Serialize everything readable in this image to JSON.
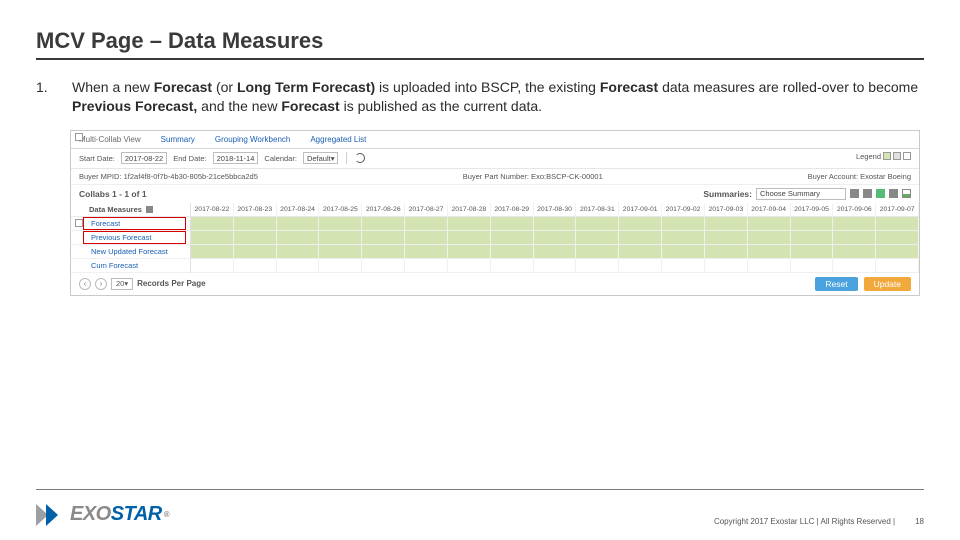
{
  "title": "MCV Page – Data Measures",
  "bullet_num": "1.",
  "body_html_parts": {
    "p1": "When a new ",
    "b1": "Forecast",
    "p2": " (or ",
    "b2": "Long Term Forecast)",
    "p3": " is uploaded into BSCP, the existing ",
    "b3": "Forecast",
    "p4": " data measures are rolled-over to become ",
    "b4": "Previous Forecast,",
    "p5": " and the new ",
    "b5": "Forecast",
    "p6": " is published as the current data."
  },
  "screenshot": {
    "tabs": [
      "Multi-Collab View",
      "Summary",
      "Grouping Workbench",
      "Aggregated List"
    ],
    "tab_link_color": "#1a5fb4",
    "filters": {
      "start_label": "Start Date:",
      "start_value": "2017-08-22",
      "end_label": "End Date:",
      "end_value": "2018-11-14",
      "calendar_label": "Calendar:",
      "calendar_value": "Default",
      "legend_label": "Legend",
      "legend_colors": [
        "#d3e3b1",
        "#e0e0e0",
        "#ffffff"
      ]
    },
    "meta": {
      "left": "Buyer MPID: 1f2af4f8-0f7b-4b30-805b-21ce5bbca2d5",
      "mid": "Buyer Part Number: Exo:BSCP-CK-00001",
      "right": "Buyer Account: Exostar Boeing"
    },
    "collabs_title": "Collabs 1 - 1 of 1",
    "summaries_label": "Summaries:",
    "summaries_value": "Choose Summary",
    "grid": {
      "header": "Data Measures",
      "rows": [
        "Forecast",
        "Previous Forecast",
        "New Updated Forecast",
        "Cum Forecast"
      ],
      "redbox_rows": [
        0,
        1
      ],
      "dates": [
        "2017-08-22",
        "2017-08-23",
        "2017-08-24",
        "2017-08-25",
        "2017-08-26",
        "2017-08-27",
        "2017-08-28",
        "2017-08-29",
        "2017-08-30",
        "2017-08-31",
        "2017-09-01",
        "2017-09-02",
        "2017-09-03",
        "2017-09-04",
        "2017-09-05",
        "2017-09-06",
        "2017-09-07"
      ],
      "green_color": "#d3e3b1"
    },
    "pager": {
      "per_page": "20",
      "per_page_label": "Records Per Page",
      "reset": "Reset",
      "update": "Update",
      "reset_color": "#4aa3df",
      "update_color": "#f2a93b"
    }
  },
  "footer": {
    "copyright": "Copyright 2017 Exostar LLC | All Rights Reserved |",
    "pagenum": "18",
    "logo_text_exo": "EXO",
    "logo_text_star": "STAR",
    "logo_gray": "#8a8a8a",
    "logo_blue": "#0060a9",
    "chev_gray": "#9aa0a6",
    "chev_blue": "#0060a9"
  }
}
